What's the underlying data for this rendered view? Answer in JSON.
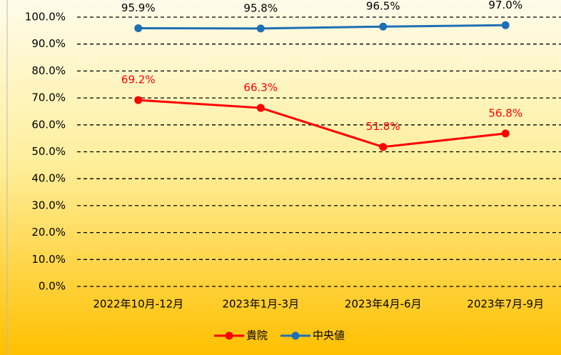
{
  "chart_data": {
    "type": "line",
    "categories": [
      "2022年10月-12月",
      "2023年1月-3月",
      "2023年4月-6月",
      "2023年7月-9月"
    ],
    "series": [
      {
        "name": "貴院",
        "color": "#ff0000",
        "values": [
          69.2,
          66.3,
          51.8,
          56.8
        ],
        "value_labels": [
          "69.2%",
          "66.3%",
          "51.8%",
          "56.8%"
        ]
      },
      {
        "name": "中央値",
        "color": "#1f6fb5",
        "values": [
          95.9,
          95.8,
          96.5,
          97.0
        ],
        "value_labels": [
          "95.9%",
          "95.8%",
          "96.5%",
          "97.0%"
        ]
      }
    ],
    "ylim": [
      0,
      100
    ],
    "yticks": [
      {
        "value": 0,
        "label": "0.0%"
      },
      {
        "value": 10,
        "label": "10.0%"
      },
      {
        "value": 20,
        "label": "20.0%"
      },
      {
        "value": 30,
        "label": "30.0%"
      },
      {
        "value": 40,
        "label": "40.0%"
      },
      {
        "value": 50,
        "label": "50.0%"
      },
      {
        "value": 60,
        "label": "60.0%"
      },
      {
        "value": 70,
        "label": "70.0%"
      },
      {
        "value": 80,
        "label": "80.0%"
      },
      {
        "value": 90,
        "label": "90.0%"
      },
      {
        "value": 100,
        "label": "100.0%"
      }
    ],
    "grid": true,
    "legend": "bottom"
  }
}
